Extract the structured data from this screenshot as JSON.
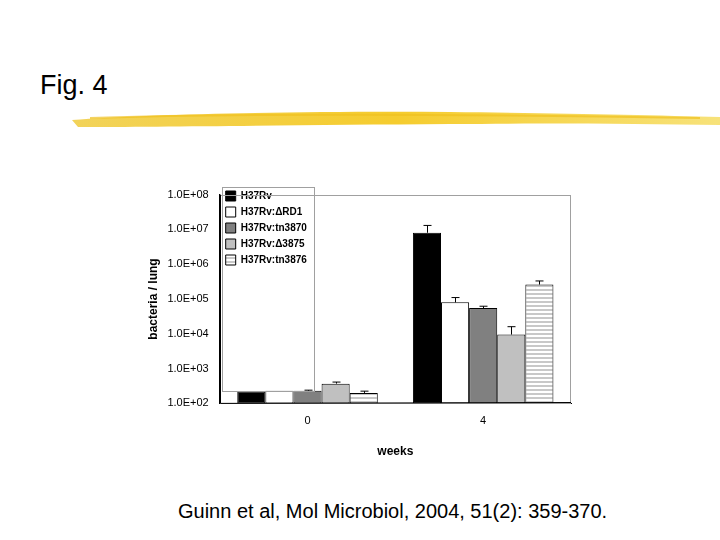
{
  "title": "Fig. 4",
  "citation": "Guinn et al, Mol Microbiol, 2004, 51(2): 359-370.",
  "chart_data": {
    "type": "bar",
    "categories": [
      "0",
      "4"
    ],
    "x_label": "weeks",
    "y_label": "bacteria / lung",
    "log": "y",
    "ylim": [
      100,
      100000000
    ],
    "yticks": [
      {
        "value": 100,
        "label": "1.0E+02"
      },
      {
        "value": 1000,
        "label": "1.0E+03"
      },
      {
        "value": 10000,
        "label": "1.0E+04"
      },
      {
        "value": 100000,
        "label": "1.0E+05"
      },
      {
        "value": 1000000,
        "label": "1.0E+06"
      },
      {
        "value": 10000000,
        "label": "1.0E+07"
      },
      {
        "value": 100000000,
        "label": "1.0E+08"
      }
    ],
    "grid": false,
    "legend": "upper left",
    "series": [
      {
        "name": "H37Rv",
        "color": "#000000",
        "values": [
          220,
          8000000
        ],
        "errors": [
          0,
          5000000
        ]
      },
      {
        "name": "H37Rv:ΔRD1",
        "color": "#ffffff",
        "values": [
          230,
          80000
        ],
        "errors": [
          0,
          30000
        ]
      },
      {
        "name": "H37Rv:tn3870",
        "color": "#808080",
        "values": [
          230,
          55000
        ],
        "errors": [
          10,
          7000
        ]
      },
      {
        "name": "H37Rv:Δ3875",
        "color": "#c0c0c0",
        "values": [
          370,
          9500
        ],
        "errors": [
          40,
          6500
        ]
      },
      {
        "name": "H37Rv:tn3876",
        "color": "#c8c8c8",
        "values": [
          200,
          260000
        ],
        "errors": [
          25,
          70000
        ]
      }
    ]
  }
}
